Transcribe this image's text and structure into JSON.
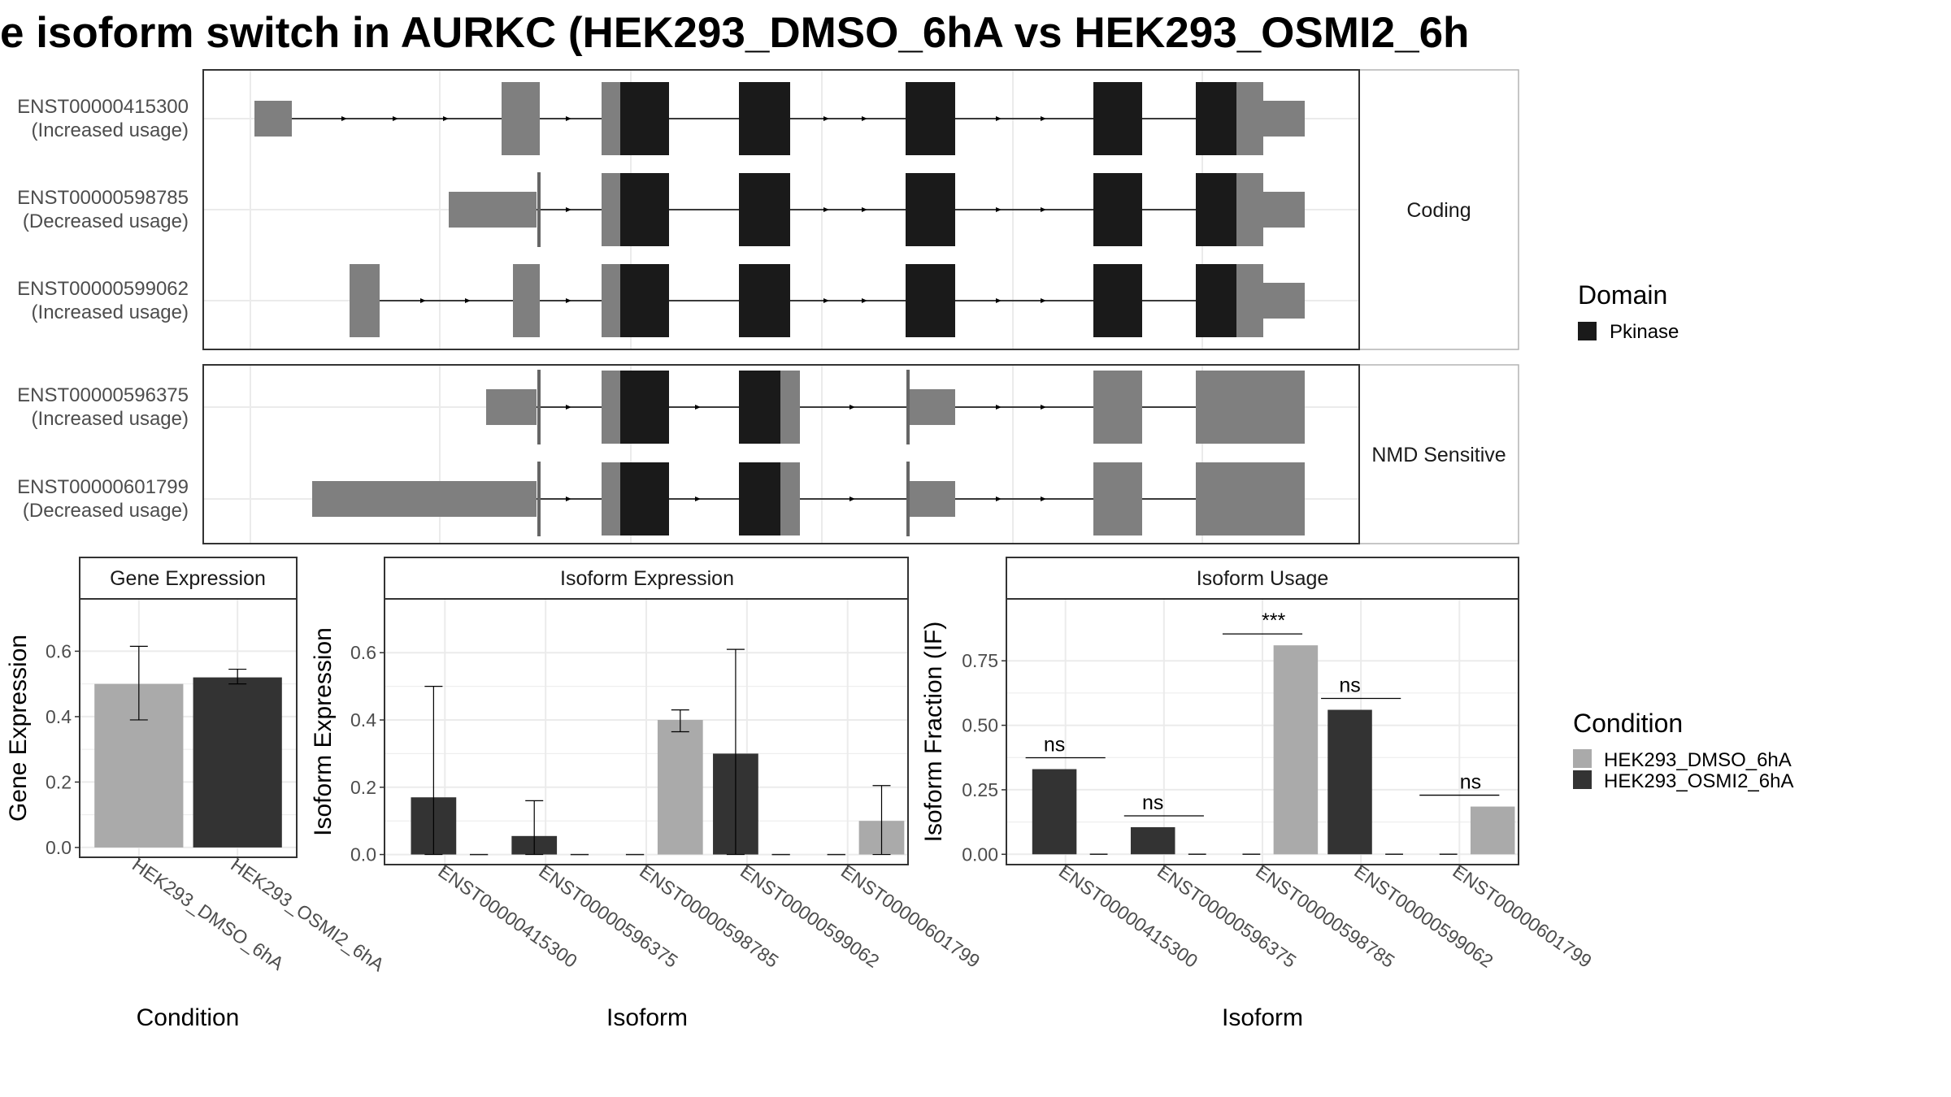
{
  "title": "e isoform switch in AURKC (HEK293_DMSO_6hA vs HEK293_OSMI2_6h",
  "colors": {
    "exon": "#7f7f7f",
    "domain": "#1a1a1a",
    "cond1": "#aaaaaa",
    "cond2": "#333333",
    "grid": "#ebebeb",
    "panel_border": "#333333",
    "strip_border": "#b3b3b3"
  },
  "legend_domain": {
    "title": "Domain",
    "items": [
      "Pkinase"
    ]
  },
  "legend_condition": {
    "title": "Condition",
    "items": [
      "HEK293_DMSO_6hA",
      "HEK293_OSMI2_6hA"
    ]
  },
  "structure": {
    "facets": [
      {
        "label": "Coding",
        "transcripts": [
          {
            "id": "ENST00000415300",
            "usage": "(Increased usage)"
          },
          {
            "id": "ENST00000598785",
            "usage": "(Decreased usage)"
          },
          {
            "id": "ENST00000599062",
            "usage": "(Increased usage)"
          }
        ]
      },
      {
        "label": "NMD Sensitive",
        "transcripts": [
          {
            "id": "ENST00000596375",
            "usage": "(Increased usage)"
          },
          {
            "id": "ENST00000601799",
            "usage": "(Decreased usage)"
          }
        ]
      }
    ]
  },
  "chart_data": [
    {
      "type": "bar",
      "title": "Gene Expression",
      "xlabel": "Condition",
      "ylabel": "Gene Expression",
      "categories": [
        "HEK293_DMSO_6hA",
        "HEK293_OSMI2_6hA"
      ],
      "values": [
        0.5,
        0.52
      ],
      "error_low": [
        0.39,
        0.5
      ],
      "error_high": [
        0.615,
        0.545
      ],
      "yticks": [
        "0.0",
        "0.2",
        "0.4",
        "0.6"
      ],
      "ylim": [
        -0.03,
        0.76
      ],
      "grid": true
    },
    {
      "type": "bar",
      "title": "Isoform Expression",
      "xlabel": "Isoform",
      "ylabel": "Isoform Expression",
      "categories": [
        "ENST00000415300",
        "ENST00000596375",
        "ENST00000598785",
        "ENST00000599062",
        "ENST00000601799"
      ],
      "series": [
        {
          "name": "HEK293_DMSO_6hA",
          "values": [
            0.0,
            0.0,
            0.4,
            0.0,
            0.1
          ],
          "error_low": [
            0.0,
            0.0,
            0.365,
            0.0,
            0.0
          ],
          "error_high": [
            0.0,
            0.0,
            0.43,
            0.0,
            0.205
          ]
        },
        {
          "name": "HEK293_OSMI2_6hA",
          "values": [
            0.17,
            0.055,
            0.0,
            0.3,
            0.0
          ],
          "error_low": [
            0.0,
            0.0,
            0.0,
            0.0,
            0.0
          ],
          "error_high": [
            0.5,
            0.16,
            0.0,
            0.61,
            0.0
          ]
        }
      ],
      "yticks": [
        "0.0",
        "0.2",
        "0.4",
        "0.6"
      ],
      "ylim": [
        -0.03,
        0.76
      ],
      "grid": true
    },
    {
      "type": "bar",
      "title": "Isoform Usage",
      "xlabel": "Isoform",
      "ylabel": "Isoform Fraction (IF)",
      "categories": [
        "ENST00000415300",
        "ENST00000596375",
        "ENST00000598785",
        "ENST00000599062",
        "ENST00000601799"
      ],
      "series": [
        {
          "name": "HEK293_DMSO_6hA",
          "values": [
            0.0,
            0.0,
            0.81,
            0.0,
            0.185
          ]
        },
        {
          "name": "HEK293_OSMI2_6hA",
          "values": [
            0.33,
            0.105,
            0.0,
            0.56,
            0.0
          ]
        }
      ],
      "significance": [
        "ns",
        "ns",
        "***",
        "ns",
        "ns"
      ],
      "yticks": [
        "0.00",
        "0.25",
        "0.50",
        "0.75"
      ],
      "ylim": [
        -0.04,
        0.99
      ],
      "grid": true
    }
  ]
}
